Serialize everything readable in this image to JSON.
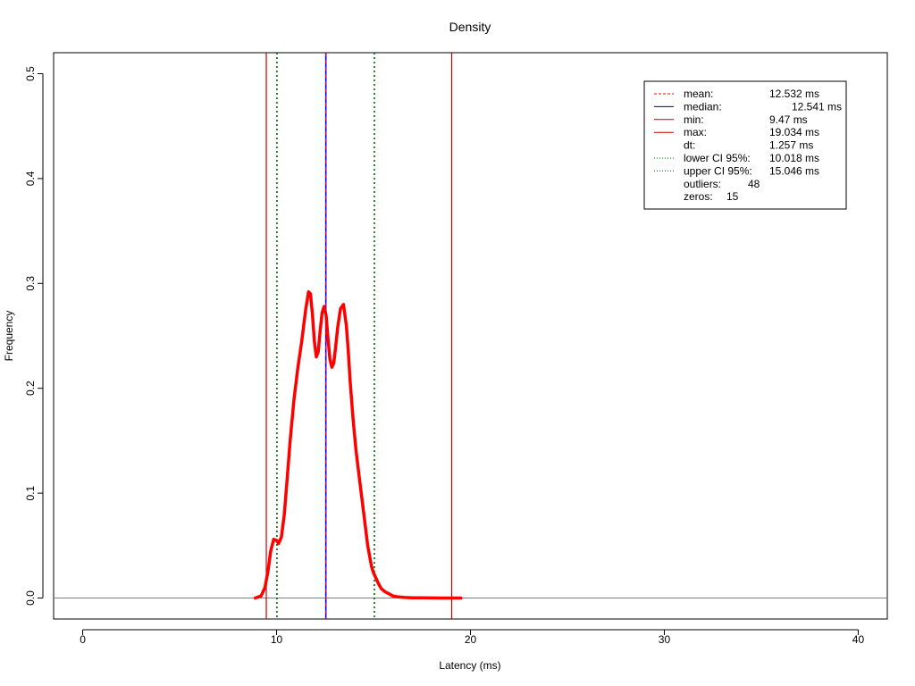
{
  "chart_data": {
    "type": "line",
    "title": "Density",
    "xlabel": "Latency (ms)",
    "ylabel": "Frequency",
    "xlim": [
      -1.5,
      41.5
    ],
    "ylim": [
      -0.02,
      0.52
    ],
    "xticks": [
      0,
      10,
      20,
      30,
      40
    ],
    "yticks": [
      0.0,
      0.1,
      0.2,
      0.3,
      0.4,
      0.5
    ],
    "xtick_labels": [
      "0",
      "10",
      "20",
      "30",
      "40"
    ],
    "ytick_labels": [
      "0.0",
      "0.1",
      "0.2",
      "0.3",
      "0.4",
      "0.5"
    ],
    "grid": false,
    "legend_position": "top-right",
    "colors": {
      "density": "#ff0000",
      "mean": "#ff0000",
      "median": "#0000ff",
      "min": "#cc0000",
      "max": "#cc0000",
      "ci": "#006400",
      "baseline": "#808080"
    },
    "series": [
      {
        "x": [
          8.9,
          9.2,
          9.4,
          9.55,
          9.7,
          9.85,
          10.0,
          10.1,
          10.25,
          10.4,
          10.55,
          10.7,
          10.9,
          11.1,
          11.3,
          11.5,
          11.65,
          11.75,
          11.85,
          11.95,
          12.05,
          12.15,
          12.25,
          12.35,
          12.45,
          12.55,
          12.65,
          12.75,
          12.85,
          12.95,
          13.05,
          13.15,
          13.3,
          13.45,
          13.6,
          13.7,
          13.8,
          13.95,
          14.1,
          14.3,
          14.5,
          14.7,
          14.9,
          15.0,
          15.1,
          15.25,
          15.4,
          15.6,
          15.8,
          16.0,
          16.3,
          16.6,
          17.0,
          17.5,
          18.0,
          18.5,
          19.0,
          19.5
        ],
        "y": [
          0.0,
          0.002,
          0.01,
          0.025,
          0.045,
          0.056,
          0.055,
          0.052,
          0.058,
          0.08,
          0.115,
          0.15,
          0.19,
          0.22,
          0.245,
          0.275,
          0.292,
          0.29,
          0.27,
          0.245,
          0.23,
          0.235,
          0.255,
          0.272,
          0.278,
          0.27,
          0.248,
          0.228,
          0.22,
          0.224,
          0.24,
          0.258,
          0.276,
          0.28,
          0.26,
          0.235,
          0.205,
          0.17,
          0.14,
          0.11,
          0.08,
          0.05,
          0.03,
          0.024,
          0.02,
          0.014,
          0.009,
          0.006,
          0.004,
          0.002,
          0.001,
          0.0005,
          0.0003,
          0.0002,
          0.0001,
          0.0,
          0.0,
          0.0
        ]
      }
    ],
    "vlines": {
      "mean": 12.532,
      "median": 12.541,
      "min": 9.47,
      "max": 19.034,
      "lower_ci": 10.018,
      "upper_ci": 15.046
    },
    "hline": 0.0,
    "legend": {
      "rows": [
        {
          "label": "mean:",
          "value": "12.532 ms"
        },
        {
          "label": "median:",
          "value": "12.541 ms"
        },
        {
          "label": "min:",
          "value": "9.47 ms"
        },
        {
          "label": "max:",
          "value": "19.034 ms"
        },
        {
          "label": "dt:",
          "value": "1.257 ms"
        },
        {
          "label": "lower CI 95%:",
          "value": "10.018 ms"
        },
        {
          "label": "upper CI 95%:",
          "value": "15.046 ms"
        },
        {
          "label": "outliers:",
          "value": "48"
        },
        {
          "label": "zeros:",
          "value": "15"
        }
      ]
    }
  }
}
